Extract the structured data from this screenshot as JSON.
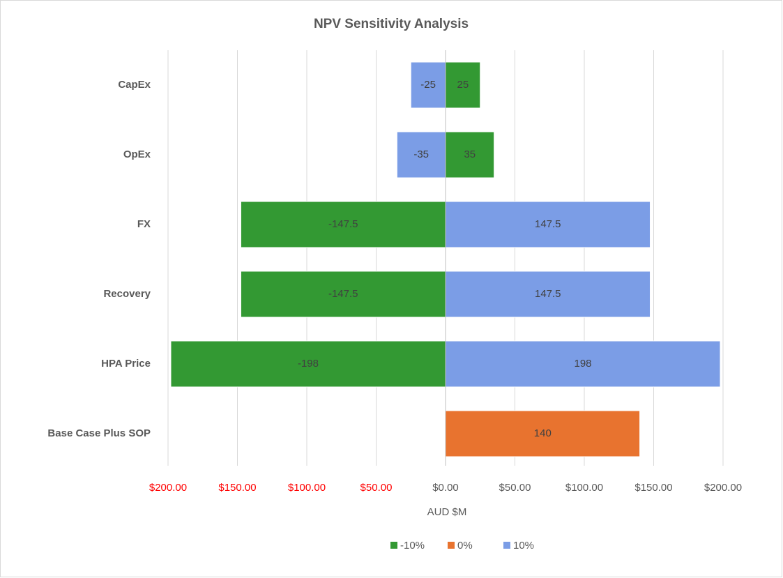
{
  "chart_data": {
    "type": "bar",
    "orientation": "horizontal",
    "title": "NPV Sensitivity Analysis",
    "x_label": "AUD $M",
    "categories": [
      "CapEx",
      "OpEx",
      "FX",
      "Recovery",
      "HPA Price",
      "Base Case Plus SOP"
    ],
    "series": [
      {
        "name": "-10%",
        "color": "#339933",
        "values": [
          25,
          35,
          -147.5,
          -147.5,
          -198,
          null
        ]
      },
      {
        "name": "0%",
        "color": "#e8732f",
        "values": [
          null,
          null,
          null,
          null,
          null,
          140
        ]
      },
      {
        "name": "10%",
        "color": "#7b9de6",
        "values": [
          -25,
          -35,
          147.5,
          147.5,
          198,
          null
        ]
      }
    ],
    "xlim": [
      -200,
      200
    ],
    "xticks": [
      {
        "value": -200,
        "label": "$200.00"
      },
      {
        "value": -150,
        "label": "$150.00"
      },
      {
        "value": -100,
        "label": "$100.00"
      },
      {
        "value": -50,
        "label": "$50.00"
      },
      {
        "value": 0,
        "label": "$0.00"
      },
      {
        "value": 50,
        "label": "$50.00"
      },
      {
        "value": 100,
        "label": "$100.00"
      },
      {
        "value": 150,
        "label": "$150.00"
      },
      {
        "value": 200,
        "label": "$200.00"
      }
    ],
    "negative_tick_color": "#ff0000",
    "grid": true,
    "legend": "bottom"
  }
}
